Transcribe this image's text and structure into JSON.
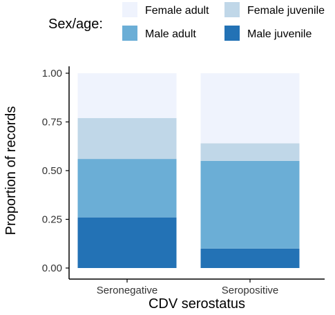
{
  "chart_data": {
    "type": "bar",
    "stacked": true,
    "xlabel": "CDV serostatus",
    "ylabel": "Proportion of records",
    "ylim": [
      0,
      1
    ],
    "yticks": [
      "0.00",
      "0.25",
      "0.50",
      "0.75",
      "1.00"
    ],
    "ytick_values": [
      0,
      0.25,
      0.5,
      0.75,
      1.0
    ],
    "categories": [
      "Seronegative",
      "Seropositive"
    ],
    "legend": {
      "title": "Sex/age:",
      "placement": "top"
    },
    "series": [
      {
        "name": "Male juvenile",
        "color": "#2372b5",
        "values": [
          0.26,
          0.1
        ]
      },
      {
        "name": "Male adult",
        "color": "#6baed6",
        "values": [
          0.3,
          0.45
        ]
      },
      {
        "name": "Female juvenile",
        "color": "#c0d7e8",
        "values": [
          0.21,
          0.09
        ]
      },
      {
        "name": "Female adult",
        "color": "#eff3fd",
        "values": [
          0.23,
          0.36
        ]
      }
    ],
    "legend_order": [
      "Female adult",
      "Female juvenile",
      "Male adult",
      "Male juvenile"
    ],
    "grid": false
  }
}
